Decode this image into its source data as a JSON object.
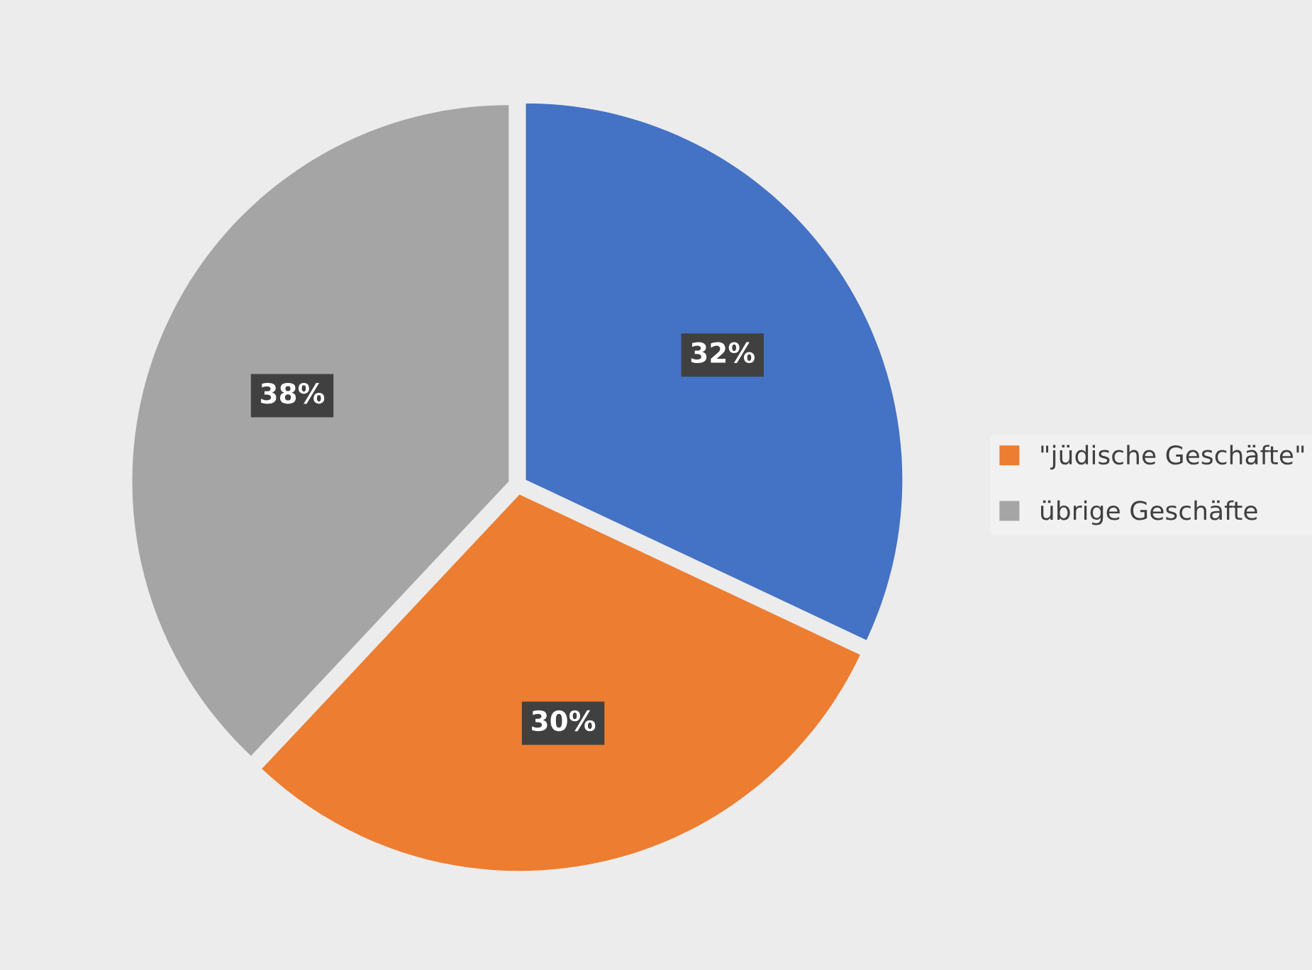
{
  "chart_data": {
    "type": "pie",
    "categories": [
      null,
      "\"jüdische Geschäfte\"",
      "übrige Geschäfte"
    ],
    "values": [
      32,
      30,
      38
    ],
    "colors": [
      "#4472c4",
      "#ed7d31",
      "#a5a5a5"
    ],
    "value_labels": [
      "32%",
      "30%",
      "38%"
    ],
    "legend": "right"
  }
}
